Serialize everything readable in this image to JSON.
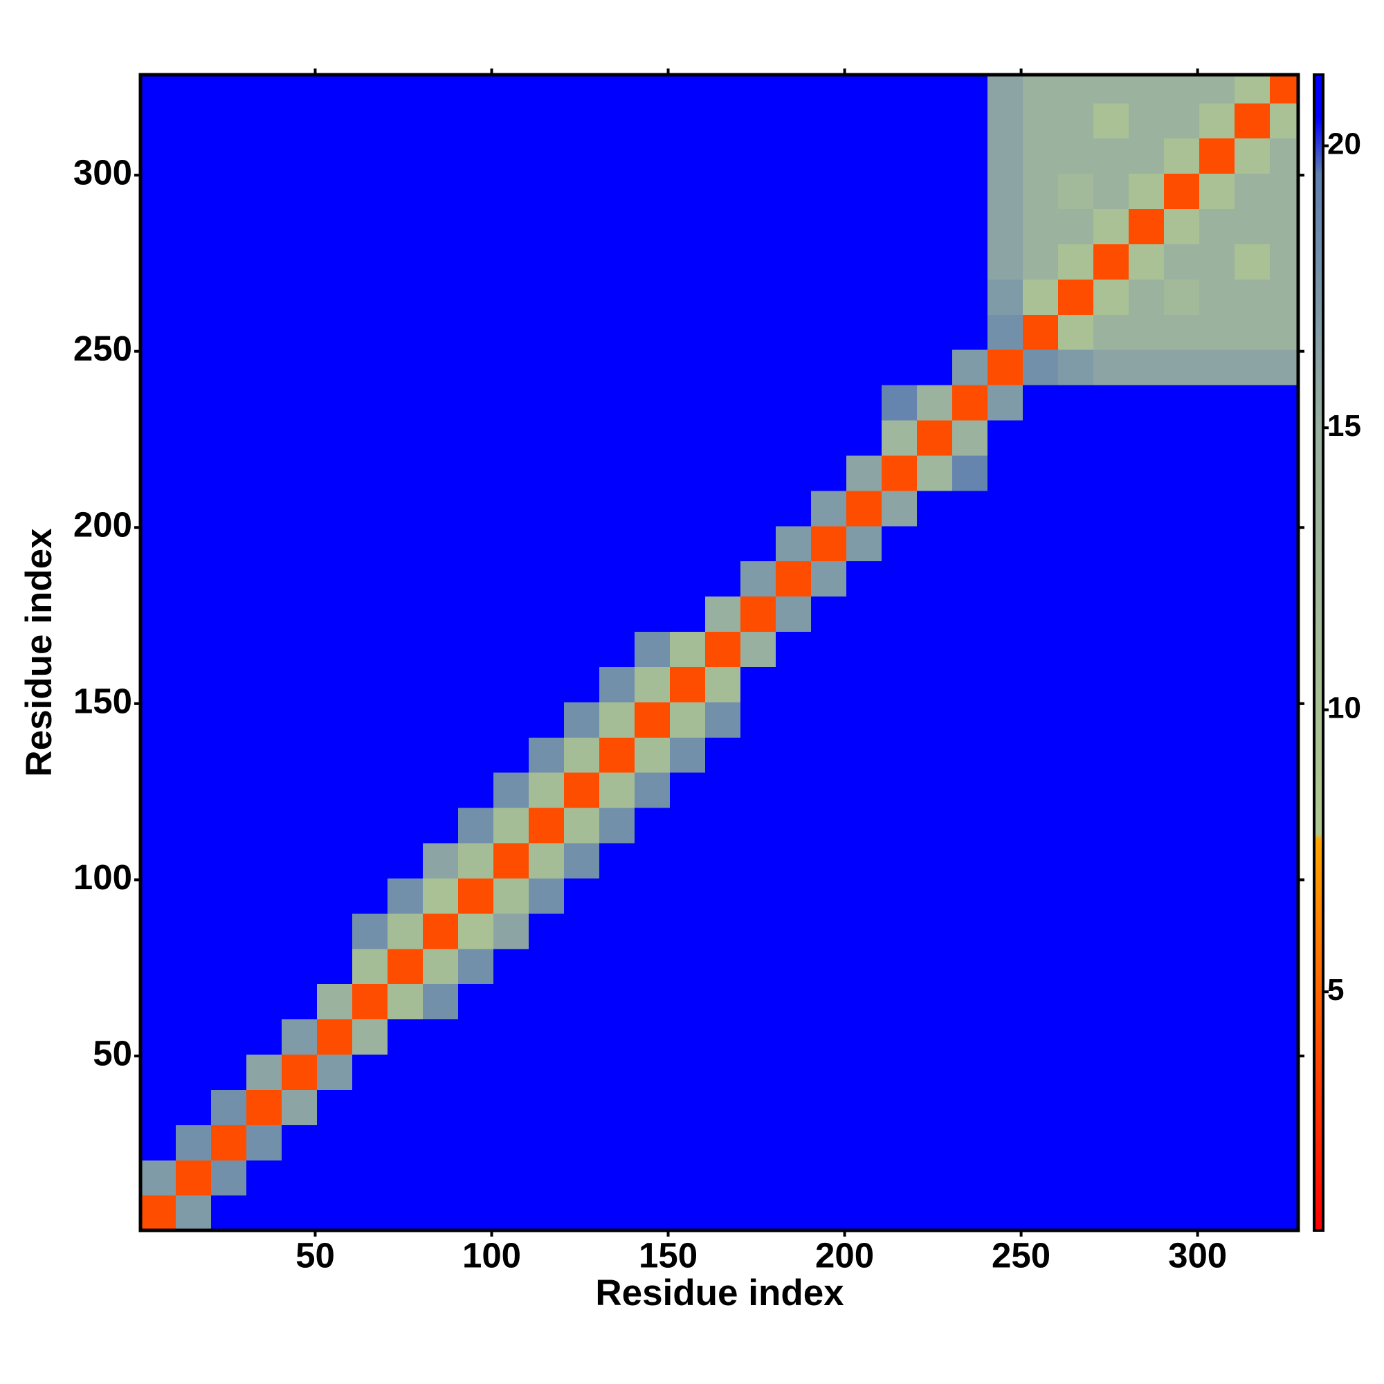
{
  "chart_data": {
    "type": "heatmap",
    "xlabel": "Residue index",
    "ylabel": "Residue index",
    "xlim": [
      0.5,
      328.5
    ],
    "ylim": [
      0.5,
      328.5
    ],
    "xticks": [
      50,
      100,
      150,
      200,
      250,
      300
    ],
    "yticks": [
      50,
      100,
      150,
      200,
      250,
      300
    ],
    "clim": [
      0.77,
      21.26
    ],
    "cticks": [
      5,
      10,
      15,
      20
    ],
    "colorscale": [
      [
        0.77,
        "#ff0000"
      ],
      [
        7.7,
        "#ffa500"
      ],
      [
        7.8,
        "#b0c890"
      ],
      [
        15,
        "#98b0a0"
      ],
      [
        19.5,
        "#6080b0"
      ],
      [
        20.5,
        "#0000ff"
      ],
      [
        21.26,
        "#0000ff"
      ]
    ],
    "bins": [
      0.5,
      10.5,
      20.5,
      30.5,
      40.5,
      50.5,
      60.5,
      70.5,
      80.5,
      90.5,
      100.5,
      110.5,
      120.5,
      130.5,
      140.5,
      150.5,
      160.5,
      170.5,
      180.5,
      190.5,
      200.5,
      210.5,
      220.5,
      230.5,
      240.5,
      250.5,
      260.5,
      270.5,
      280.5,
      290.5,
      300.5,
      310.5,
      320.5,
      328.5
    ],
    "z": [
      [
        4,
        17,
        21,
        21,
        21,
        21,
        21,
        21,
        21,
        21,
        21,
        21,
        21,
        21,
        21,
        21,
        21,
        21,
        21,
        21,
        21,
        21,
        21,
        21,
        21,
        21,
        21,
        21,
        21,
        21,
        21,
        21,
        21
      ],
      [
        17,
        4,
        18,
        21,
        21,
        21,
        21,
        21,
        21,
        21,
        21,
        21,
        21,
        21,
        21,
        21,
        21,
        21,
        21,
        21,
        21,
        21,
        21,
        21,
        21,
        21,
        21,
        21,
        21,
        21,
        21,
        21,
        21
      ],
      [
        21,
        18,
        4,
        18,
        21,
        21,
        21,
        21,
        21,
        21,
        21,
        21,
        21,
        21,
        21,
        21,
        21,
        21,
        21,
        21,
        21,
        21,
        21,
        21,
        21,
        21,
        21,
        21,
        21,
        21,
        21,
        21,
        21
      ],
      [
        21,
        21,
        18,
        4,
        16,
        21,
        21,
        21,
        21,
        21,
        21,
        21,
        21,
        21,
        21,
        21,
        21,
        21,
        21,
        21,
        21,
        21,
        21,
        21,
        21,
        21,
        21,
        21,
        21,
        21,
        21,
        21,
        21
      ],
      [
        21,
        21,
        21,
        16,
        4,
        17,
        21,
        21,
        21,
        21,
        21,
        21,
        21,
        21,
        21,
        21,
        21,
        21,
        21,
        21,
        21,
        21,
        21,
        21,
        21,
        21,
        21,
        21,
        21,
        21,
        21,
        21,
        21
      ],
      [
        21,
        21,
        21,
        21,
        17,
        4,
        14,
        21,
        21,
        21,
        21,
        21,
        21,
        21,
        21,
        21,
        21,
        21,
        21,
        21,
        21,
        21,
        21,
        21,
        21,
        21,
        21,
        21,
        21,
        21,
        21,
        21,
        21
      ],
      [
        21,
        21,
        21,
        21,
        21,
        14,
        4,
        11,
        18,
        21,
        21,
        21,
        21,
        21,
        21,
        21,
        21,
        21,
        21,
        21,
        21,
        21,
        21,
        21,
        21,
        21,
        21,
        21,
        21,
        21,
        21,
        21,
        21
      ],
      [
        21,
        21,
        21,
        21,
        21,
        21,
        11,
        4,
        11,
        18,
        21,
        21,
        21,
        21,
        21,
        21,
        21,
        21,
        21,
        21,
        21,
        21,
        21,
        21,
        21,
        21,
        21,
        21,
        21,
        21,
        21,
        21,
        21
      ],
      [
        21,
        21,
        21,
        21,
        21,
        21,
        18,
        11,
        4,
        10,
        16,
        21,
        21,
        21,
        21,
        21,
        21,
        21,
        21,
        21,
        21,
        21,
        21,
        21,
        21,
        21,
        21,
        21,
        21,
        21,
        21,
        21,
        21
      ],
      [
        21,
        21,
        21,
        21,
        21,
        21,
        21,
        18,
        10,
        4,
        11,
        18,
        21,
        21,
        21,
        21,
        21,
        21,
        21,
        21,
        21,
        21,
        21,
        21,
        21,
        21,
        21,
        21,
        21,
        21,
        21,
        21,
        21
      ],
      [
        21,
        21,
        21,
        21,
        21,
        21,
        21,
        21,
        16,
        11,
        4,
        11,
        18,
        21,
        21,
        21,
        21,
        21,
        21,
        21,
        21,
        21,
        21,
        21,
        21,
        21,
        21,
        21,
        21,
        21,
        21,
        21,
        21
      ],
      [
        21,
        21,
        21,
        21,
        21,
        21,
        21,
        21,
        21,
        18,
        11,
        4,
        11,
        18,
        21,
        21,
        21,
        21,
        21,
        21,
        21,
        21,
        21,
        21,
        21,
        21,
        21,
        21,
        21,
        21,
        21,
        21,
        21
      ],
      [
        21,
        21,
        21,
        21,
        21,
        21,
        21,
        21,
        21,
        21,
        18,
        11,
        4,
        11,
        18,
        21,
        21,
        21,
        21,
        21,
        21,
        21,
        21,
        21,
        21,
        21,
        21,
        21,
        21,
        21,
        21,
        21,
        21
      ],
      [
        21,
        21,
        21,
        21,
        21,
        21,
        21,
        21,
        21,
        21,
        21,
        18,
        11,
        4,
        11,
        18,
        21,
        21,
        21,
        21,
        21,
        21,
        21,
        21,
        21,
        21,
        21,
        21,
        21,
        21,
        21,
        21,
        21
      ],
      [
        21,
        21,
        21,
        21,
        21,
        21,
        21,
        21,
        21,
        21,
        21,
        21,
        18,
        11,
        4,
        11,
        18,
        21,
        21,
        21,
        21,
        21,
        21,
        21,
        21,
        21,
        21,
        21,
        21,
        21,
        21,
        21,
        21
      ],
      [
        21,
        21,
        21,
        21,
        21,
        21,
        21,
        21,
        21,
        21,
        21,
        21,
        21,
        18,
        11,
        4,
        11,
        21,
        21,
        21,
        21,
        21,
        21,
        21,
        21,
        21,
        21,
        21,
        21,
        21,
        21,
        21,
        21
      ],
      [
        21,
        21,
        21,
        21,
        21,
        21,
        21,
        21,
        21,
        21,
        21,
        21,
        21,
        21,
        18,
        11,
        4,
        15,
        21,
        21,
        21,
        21,
        21,
        21,
        21,
        21,
        21,
        21,
        21,
        21,
        21,
        21,
        21
      ],
      [
        21,
        21,
        21,
        21,
        21,
        21,
        21,
        21,
        21,
        21,
        21,
        21,
        21,
        21,
        21,
        21,
        15,
        4,
        17,
        21,
        21,
        21,
        21,
        21,
        21,
        21,
        21,
        21,
        21,
        21,
        21,
        21,
        21
      ],
      [
        21,
        21,
        21,
        21,
        21,
        21,
        21,
        21,
        21,
        21,
        21,
        21,
        21,
        21,
        21,
        21,
        21,
        17,
        4,
        17,
        21,
        21,
        21,
        21,
        21,
        21,
        21,
        21,
        21,
        21,
        21,
        21,
        21
      ],
      [
        21,
        21,
        21,
        21,
        21,
        21,
        21,
        21,
        21,
        21,
        21,
        21,
        21,
        21,
        21,
        21,
        21,
        21,
        17,
        4,
        17,
        21,
        21,
        21,
        21,
        21,
        21,
        21,
        21,
        21,
        21,
        21,
        21
      ],
      [
        21,
        21,
        21,
        21,
        21,
        21,
        21,
        21,
        21,
        21,
        21,
        21,
        21,
        21,
        21,
        21,
        21,
        21,
        21,
        17,
        4,
        16,
        21,
        21,
        21,
        21,
        21,
        21,
        21,
        21,
        21,
        21,
        21
      ],
      [
        21,
        21,
        21,
        21,
        21,
        21,
        21,
        21,
        21,
        21,
        21,
        21,
        21,
        21,
        21,
        21,
        21,
        21,
        21,
        21,
        16,
        4,
        13,
        19,
        21,
        21,
        21,
        21,
        21,
        21,
        21,
        21,
        21
      ],
      [
        21,
        21,
        21,
        21,
        21,
        21,
        21,
        21,
        21,
        21,
        21,
        21,
        21,
        21,
        21,
        21,
        21,
        21,
        21,
        21,
        21,
        13,
        4,
        14,
        21,
        21,
        21,
        21,
        21,
        21,
        21,
        21,
        21
      ],
      [
        21,
        21,
        21,
        21,
        21,
        21,
        21,
        21,
        21,
        21,
        21,
        21,
        21,
        21,
        21,
        21,
        21,
        21,
        21,
        21,
        21,
        19,
        14,
        4,
        17,
        21,
        21,
        21,
        21,
        21,
        21,
        21,
        21
      ],
      [
        21,
        21,
        21,
        21,
        21,
        21,
        21,
        21,
        21,
        21,
        21,
        21,
        21,
        21,
        21,
        21,
        21,
        21,
        21,
        21,
        21,
        21,
        21,
        17,
        4,
        18,
        17,
        16,
        16,
        16,
        16,
        16,
        16
      ],
      [
        21,
        21,
        21,
        21,
        21,
        21,
        21,
        21,
        21,
        21,
        21,
        21,
        21,
        21,
        21,
        21,
        21,
        21,
        21,
        21,
        21,
        21,
        21,
        21,
        18,
        4,
        10,
        14,
        14,
        14,
        14,
        14,
        14
      ],
      [
        21,
        21,
        21,
        21,
        21,
        21,
        21,
        21,
        21,
        21,
        21,
        21,
        21,
        21,
        21,
        21,
        21,
        21,
        21,
        21,
        21,
        21,
        21,
        21,
        17,
        10,
        4,
        10,
        14,
        12,
        14,
        14,
        14
      ],
      [
        21,
        21,
        21,
        21,
        21,
        21,
        21,
        21,
        21,
        21,
        21,
        21,
        21,
        21,
        21,
        21,
        21,
        21,
        21,
        21,
        21,
        21,
        21,
        21,
        16,
        14,
        10,
        4,
        10,
        14,
        14,
        10,
        14
      ],
      [
        21,
        21,
        21,
        21,
        21,
        21,
        21,
        21,
        21,
        21,
        21,
        21,
        21,
        21,
        21,
        21,
        21,
        21,
        21,
        21,
        21,
        21,
        21,
        21,
        16,
        14,
        14,
        10,
        4,
        10,
        14,
        14,
        14
      ],
      [
        21,
        21,
        21,
        21,
        21,
        21,
        21,
        21,
        21,
        21,
        21,
        21,
        21,
        21,
        21,
        21,
        21,
        21,
        21,
        21,
        21,
        21,
        21,
        21,
        16,
        14,
        12,
        14,
        10,
        4,
        10,
        14,
        14
      ],
      [
        21,
        21,
        21,
        21,
        21,
        21,
        21,
        21,
        21,
        21,
        21,
        21,
        21,
        21,
        21,
        21,
        21,
        21,
        21,
        21,
        21,
        21,
        21,
        21,
        16,
        14,
        14,
        14,
        14,
        10,
        4,
        10,
        14
      ],
      [
        21,
        21,
        21,
        21,
        21,
        21,
        21,
        21,
        21,
        21,
        21,
        21,
        21,
        21,
        21,
        21,
        21,
        21,
        21,
        21,
        21,
        21,
        21,
        21,
        16,
        14,
        14,
        10,
        14,
        14,
        10,
        4,
        10
      ],
      [
        21,
        21,
        21,
        21,
        21,
        21,
        21,
        21,
        21,
        21,
        21,
        21,
        21,
        21,
        21,
        21,
        21,
        21,
        21,
        21,
        21,
        21,
        21,
        21,
        16,
        14,
        14,
        14,
        14,
        14,
        14,
        10,
        4
      ]
    ]
  }
}
